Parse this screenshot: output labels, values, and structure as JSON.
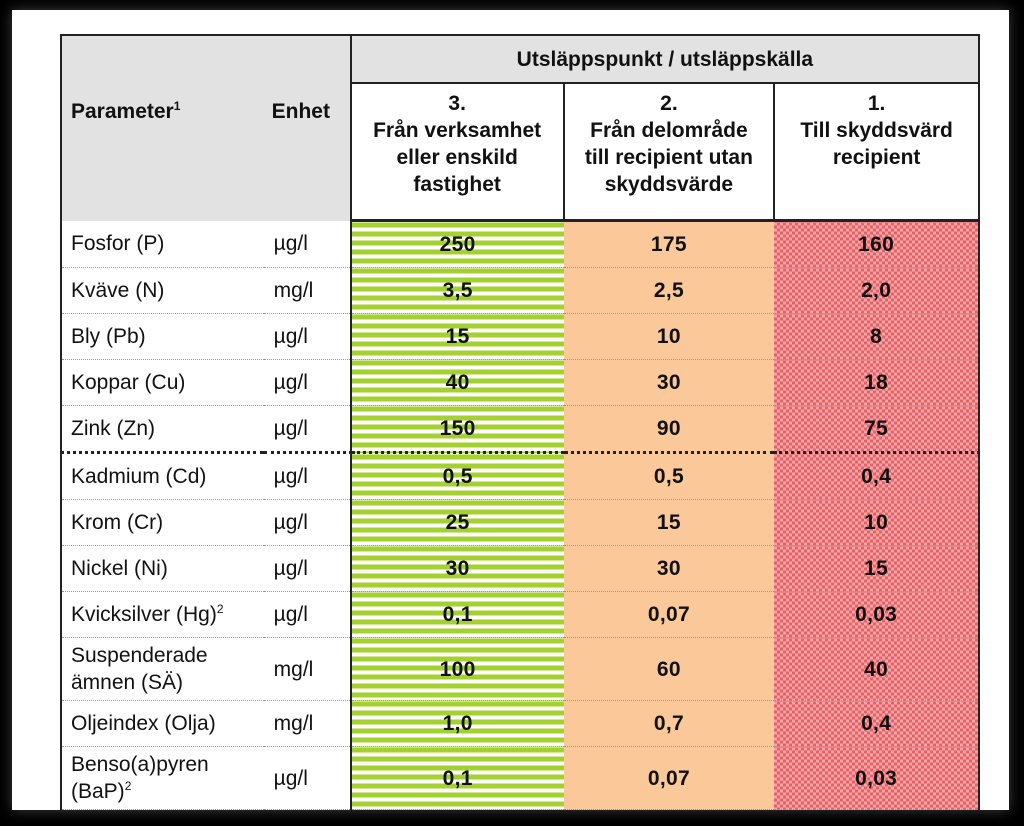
{
  "table": {
    "header": {
      "parameter": "Parameter",
      "parameter_sup": "1",
      "unit": "Enhet",
      "group": "Utsläppspunkt / utsläppskälla",
      "col3": {
        "num": "3.",
        "lines": [
          "Från verksamhet",
          "eller enskild",
          "fastighet"
        ]
      },
      "col2": {
        "num": "2.",
        "lines": [
          "Från delområde",
          "till recipient utan",
          "skyddsvärde"
        ]
      },
      "col1": {
        "num": "1.",
        "lines": [
          "Till skyddsvärd",
          "recipient"
        ]
      }
    },
    "rows": [
      {
        "param": "Fosfor (P)",
        "sup": "",
        "unit": "µg/l",
        "v3": "250",
        "v2": "175",
        "v1": "160"
      },
      {
        "param": "Kväve (N)",
        "sup": "",
        "unit": "mg/l",
        "v3": "3,5",
        "v2": "2,5",
        "v1": "2,0"
      },
      {
        "param": "Bly (Pb)",
        "sup": "",
        "unit": "µg/l",
        "v3": "15",
        "v2": "10",
        "v1": "8"
      },
      {
        "param": "Koppar (Cu)",
        "sup": "",
        "unit": "µg/l",
        "v3": "40",
        "v2": "30",
        "v1": "18"
      },
      {
        "param": "Zink (Zn)",
        "sup": "",
        "unit": "µg/l",
        "v3": "150",
        "v2": "90",
        "v1": "75"
      },
      {
        "param": "Kadmium (Cd)",
        "sup": "",
        "unit": "µg/l",
        "v3": "0,5",
        "v2": "0,5",
        "v1": "0,4"
      },
      {
        "param": "Krom (Cr)",
        "sup": "",
        "unit": "µg/l",
        "v3": "25",
        "v2": "15",
        "v1": "10"
      },
      {
        "param": "Nickel (Ni)",
        "sup": "",
        "unit": "µg/l",
        "v3": "30",
        "v2": "30",
        "v1": "15"
      },
      {
        "param": "Kvicksilver (Hg)",
        "sup": "2",
        "unit": "µg/l",
        "v3": "0,1",
        "v2": "0,07",
        "v1": "0,03"
      },
      {
        "param": "Suspenderade ämnen (SÄ)",
        "param_lines": [
          "Suspenderade",
          "ämnen (SÄ)"
        ],
        "sup": "",
        "unit": "mg/l",
        "v3": "100",
        "v2": "60",
        "v1": "40"
      },
      {
        "param": "Oljeindex (Olja)",
        "sup": "",
        "unit": "mg/l",
        "v3": "1,0",
        "v2": "0,7",
        "v1": "0,4"
      },
      {
        "param": "Benso(a)pyren (BaP)",
        "param_lines": [
          "Benso(a)pyren",
          "(BaP)"
        ],
        "sup": "2",
        "unit": "µg/l",
        "v3": "0,1",
        "v2": "0,07",
        "v1": "0,03"
      }
    ]
  }
}
